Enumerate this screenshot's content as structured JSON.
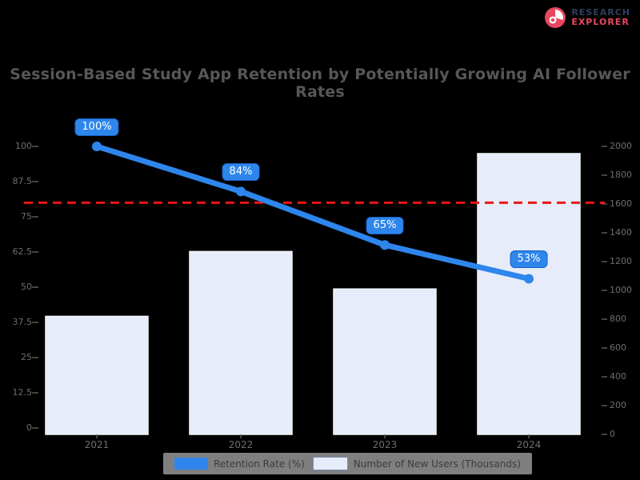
{
  "logo": {
    "line1": "RESEARCH",
    "line2": "EXPLORER",
    "icon": "pie-chart-icon",
    "icon_color": "#e8475f",
    "line1_color": "#2e3f5c",
    "line2_color": "#e8475f"
  },
  "chart_data": {
    "type": "bar",
    "subtype": "combo-bar-line-dual-axis",
    "title": "Session-Based Study App Retention by Potentially Growing AI Follower Rates",
    "categories": [
      "2021",
      "2022",
      "2023",
      "2024"
    ],
    "series": [
      {
        "name": "Retention Rate (%)",
        "type": "line",
        "axis": "left",
        "color": "#2e86ec",
        "values": [
          100,
          84,
          65,
          53
        ],
        "point_labels": [
          "100%",
          "84%",
          "65%",
          "53%"
        ]
      },
      {
        "name": "Number of New Users (Thousands)",
        "type": "bar",
        "axis": "right",
        "color": "#e6ecf9",
        "border_color": "#f2f5fc",
        "values": [
          820,
          1270,
          1010,
          1950
        ]
      }
    ],
    "threshold": {
      "axis": "left",
      "value": 80,
      "color": "#ed1515",
      "style": "dashed"
    },
    "left_axis": {
      "min": 0,
      "max": 100,
      "tick_step": 12.5,
      "ticks": [
        "100",
        "87.5",
        "75",
        "62.5",
        "50",
        "37.5",
        "25",
        "12.5",
        "0"
      ]
    },
    "right_axis": {
      "min": 0,
      "max": 2000,
      "tick_step": 200,
      "ticks": [
        "2000",
        "1800",
        "1600",
        "1400",
        "1200",
        "1000",
        "800",
        "600",
        "400",
        "200",
        "0"
      ]
    },
    "legend_position": "bottom",
    "grid": false,
    "background": "#000000",
    "text_color": "#6e6e6e"
  }
}
